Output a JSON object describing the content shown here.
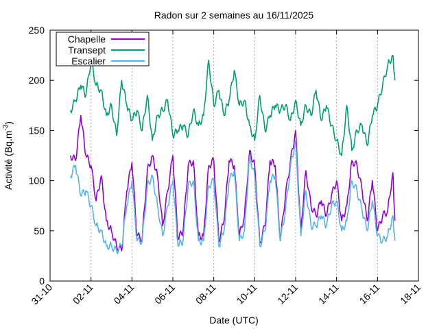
{
  "chart_data": {
    "type": "line",
    "title": "Radon sur 2 semaines au 16/11/2025",
    "xlabel": "Date (UTC)",
    "ylabel_main": "Activité (Bq.m",
    "ylabel_sup": "-3",
    "ylabel_close": ")",
    "ylim": [
      0,
      250
    ],
    "yticks": [
      0,
      50,
      100,
      150,
      200,
      250
    ],
    "xlim_days": [
      0,
      18
    ],
    "xticks": [
      {
        "day": 0,
        "label": "31-10"
      },
      {
        "day": 2,
        "label": "02-11"
      },
      {
        "day": 4,
        "label": "04-11"
      },
      {
        "day": 6,
        "label": "06-11"
      },
      {
        "day": 8,
        "label": "08-11"
      },
      {
        "day": 10,
        "label": "10-11"
      },
      {
        "day": 12,
        "label": "12-11"
      },
      {
        "day": 14,
        "label": "14-11"
      },
      {
        "day": 16,
        "label": "16-11"
      },
      {
        "day": 18,
        "label": "18-11"
      }
    ],
    "grid": "vertical dotted at x ticks",
    "legend_position": "top-left",
    "series": [
      {
        "name": "Chapelle",
        "color": "#9400d3",
        "x": [
          1.0,
          1.25,
          1.5,
          1.75,
          2.0,
          2.25,
          2.5,
          2.75,
          3.0,
          3.25,
          3.5,
          3.75,
          4.0,
          4.25,
          4.5,
          4.75,
          5.0,
          5.25,
          5.5,
          5.75,
          6.0,
          6.25,
          6.5,
          6.75,
          7.0,
          7.25,
          7.5,
          7.75,
          8.0,
          8.25,
          8.5,
          8.75,
          9.0,
          9.25,
          9.5,
          9.75,
          10.0,
          10.25,
          10.5,
          10.75,
          11.0,
          11.25,
          11.5,
          11.75,
          12.0,
          12.25,
          12.5,
          12.75,
          13.0,
          13.25,
          13.5,
          13.75,
          14.0,
          14.25,
          14.5,
          14.75,
          15.0,
          15.25,
          15.5,
          15.75,
          16.0,
          16.25,
          16.5,
          16.75,
          16.85
        ],
        "values": [
          125,
          120,
          165,
          125,
          115,
          80,
          105,
          60,
          50,
          35,
          30,
          90,
          118,
          45,
          42,
          110,
          125,
          105,
          55,
          90,
          125,
          42,
          50,
          115,
          120,
          45,
          45,
          115,
          120,
          40,
          60,
          120,
          115,
          45,
          65,
          130,
          115,
          38,
          55,
          120,
          115,
          40,
          85,
          120,
          150,
          50,
          110,
          75,
          65,
          80,
          65,
          85,
          100,
          60,
          75,
          120,
          115,
          90,
          60,
          100,
          50,
          65,
          70,
          108,
          60
        ],
        "bind_names": [
          "Chapelle"
        ]
      },
      {
        "name": "Transept",
        "color": "#009e73",
        "x": [
          1.0,
          1.25,
          1.5,
          1.75,
          2.0,
          2.25,
          2.5,
          2.75,
          3.0,
          3.25,
          3.5,
          3.75,
          4.0,
          4.25,
          4.5,
          4.75,
          5.0,
          5.25,
          5.5,
          5.75,
          6.0,
          6.25,
          6.5,
          6.75,
          7.0,
          7.25,
          7.5,
          7.75,
          8.0,
          8.25,
          8.5,
          8.75,
          9.0,
          9.25,
          9.5,
          9.75,
          10.0,
          10.25,
          10.5,
          10.75,
          11.0,
          11.25,
          11.5,
          11.75,
          12.0,
          12.25,
          12.5,
          12.75,
          13.0,
          13.25,
          13.5,
          13.75,
          14.0,
          14.25,
          14.5,
          14.75,
          15.0,
          15.25,
          15.5,
          15.75,
          16.0,
          16.25,
          16.5,
          16.75,
          16.85
        ],
        "values": [
          170,
          180,
          195,
          185,
          220,
          195,
          190,
          165,
          175,
          145,
          200,
          175,
          160,
          170,
          150,
          185,
          140,
          165,
          170,
          180,
          145,
          150,
          155,
          145,
          170,
          155,
          165,
          220,
          175,
          190,
          165,
          180,
          210,
          175,
          180,
          155,
          140,
          185,
          150,
          165,
          175,
          170,
          175,
          160,
          180,
          155,
          175,
          165,
          190,
          160,
          175,
          155,
          140,
          125,
          175,
          130,
          150,
          155,
          135,
          165,
          175,
          195,
          215,
          225,
          200
        ],
        "bind_names": [
          "Transept"
        ]
      },
      {
        "name": "Escalier",
        "color": "#56b4e9",
        "x": [
          1.0,
          1.25,
          1.5,
          1.75,
          2.0,
          2.25,
          2.5,
          2.75,
          3.0,
          3.25,
          3.5,
          3.75,
          4.0,
          4.25,
          4.5,
          4.75,
          5.0,
          5.25,
          5.5,
          5.75,
          6.0,
          6.25,
          6.5,
          6.75,
          7.0,
          7.25,
          7.5,
          7.75,
          8.0,
          8.25,
          8.5,
          8.75,
          9.0,
          9.25,
          9.5,
          9.75,
          10.0,
          10.25,
          10.5,
          10.75,
          11.0,
          11.25,
          11.5,
          11.75,
          12.0,
          12.25,
          12.5,
          12.75,
          13.0,
          13.25,
          13.5,
          13.75,
          14.0,
          14.25,
          14.5,
          14.75,
          15.0,
          15.25,
          15.5,
          15.75,
          16.0,
          16.25,
          16.5,
          16.75,
          16.85
        ],
        "values": [
          105,
          115,
          85,
          90,
          75,
          55,
          50,
          35,
          35,
          30,
          35,
          75,
          100,
          40,
          40,
          95,
          105,
          75,
          45,
          75,
          100,
          35,
          40,
          95,
          100,
          40,
          40,
          95,
          100,
          35,
          50,
          100,
          110,
          40,
          50,
          125,
          105,
          35,
          50,
          100,
          105,
          40,
          70,
          115,
          140,
          45,
          90,
          55,
          55,
          65,
          55,
          75,
          80,
          50,
          60,
          100,
          90,
          70,
          50,
          80,
          45,
          40,
          45,
          65,
          40
        ],
        "bind_names": [
          "Escalier"
        ]
      }
    ]
  }
}
